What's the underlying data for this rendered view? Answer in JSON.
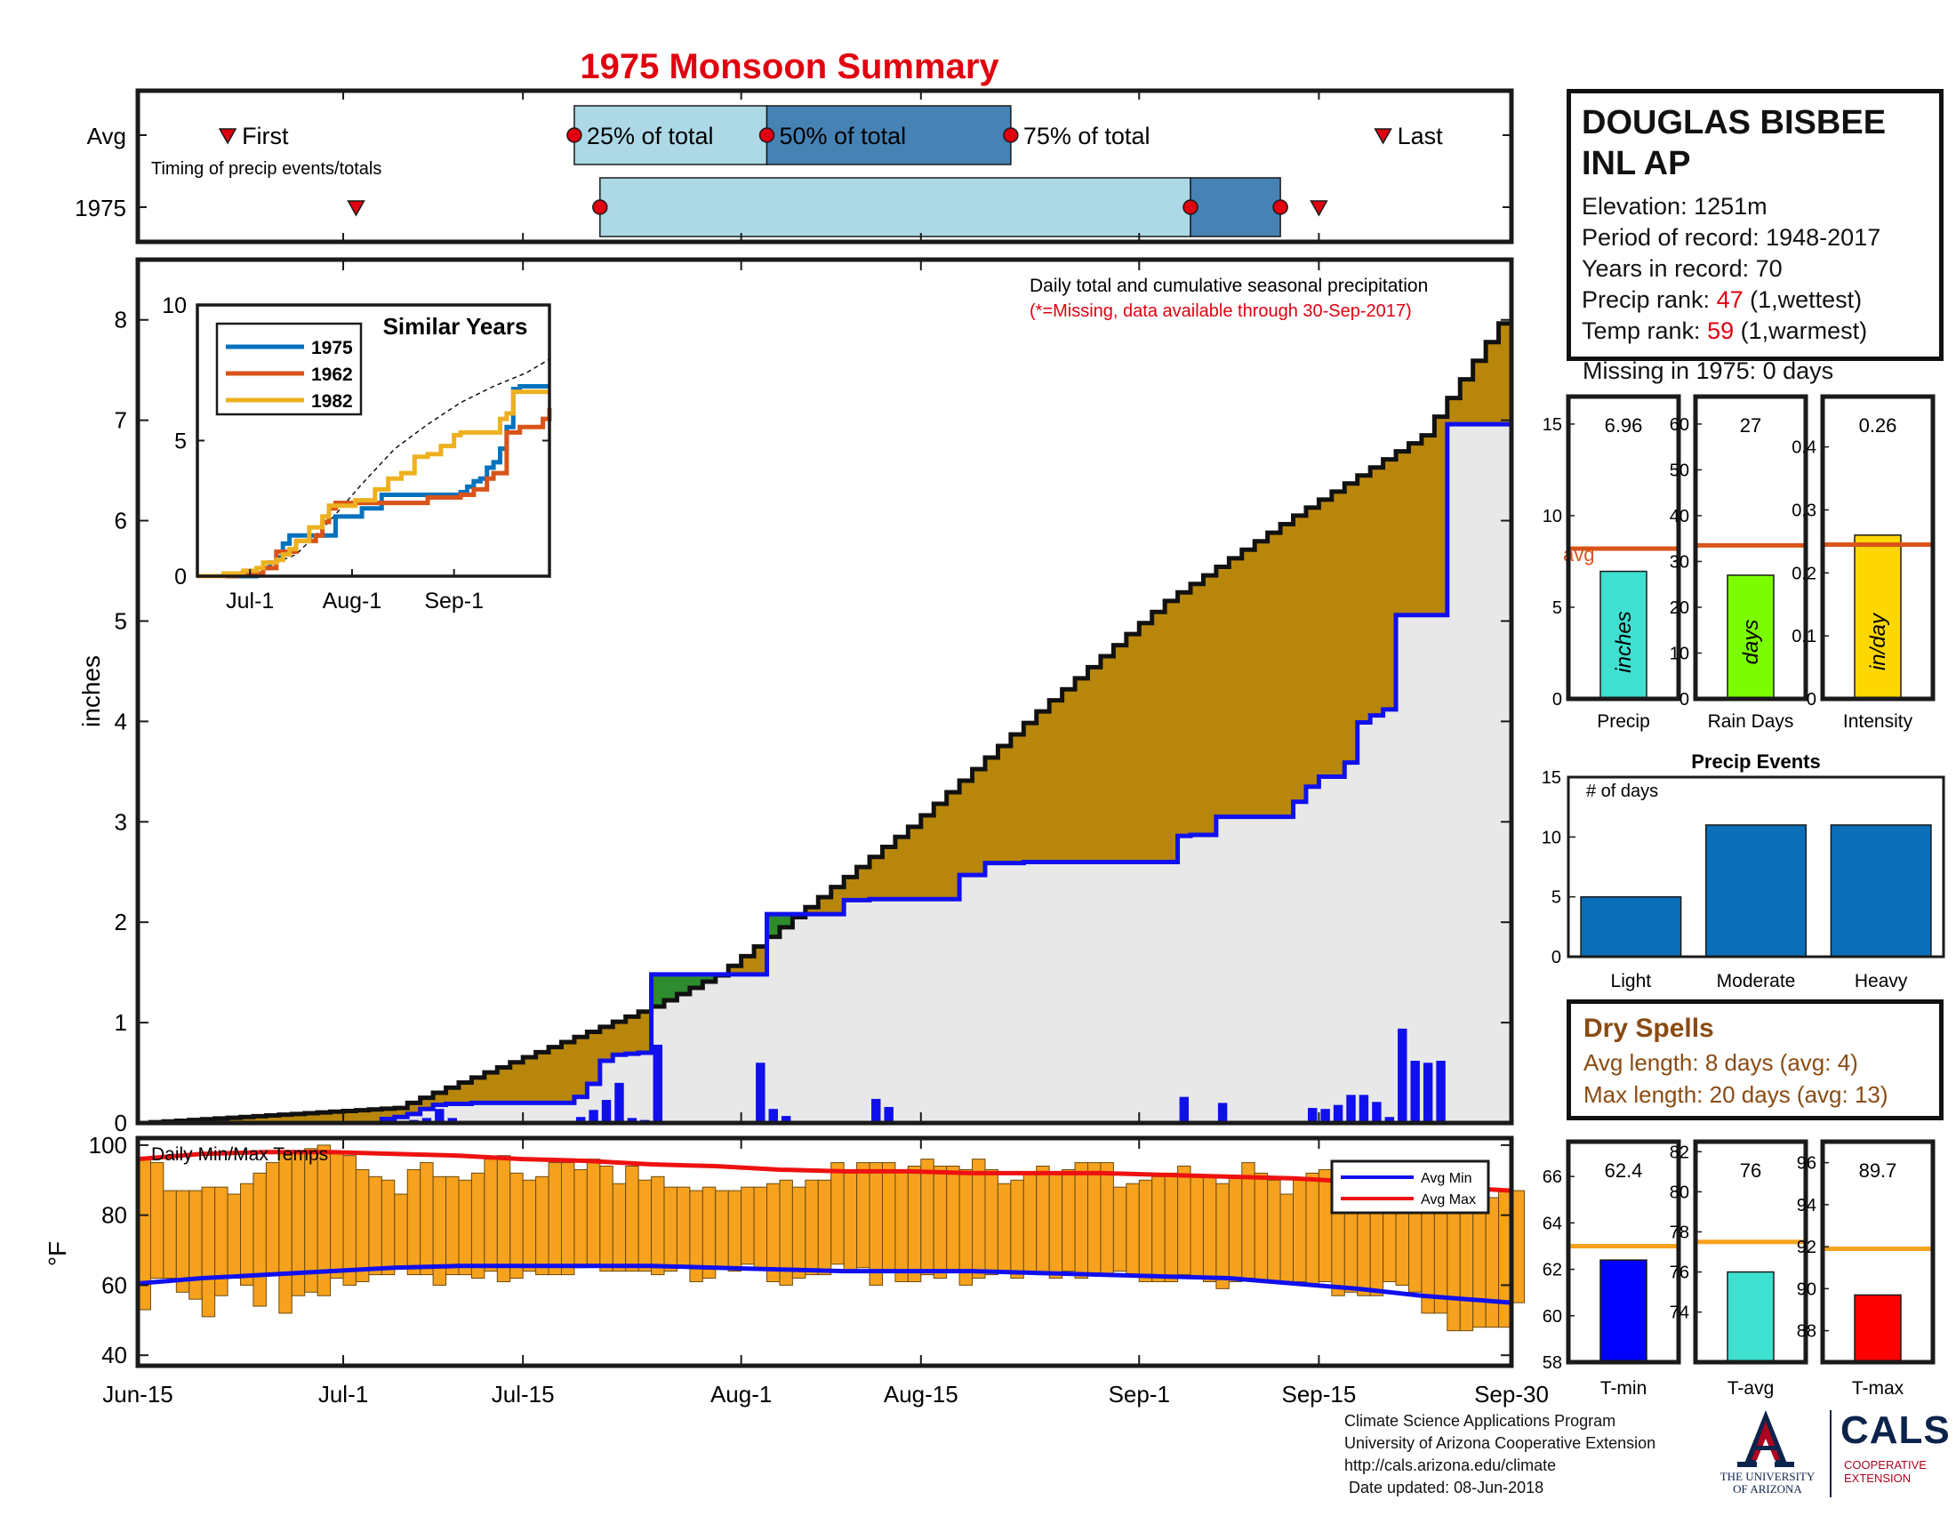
{
  "title": "1975 Monsoon Summary",
  "station": {
    "name_line1": "DOUGLAS BISBEE",
    "name_line2": "INL AP",
    "elevation": "Elevation: 1251m",
    "period": "Period of record: 1948-2017",
    "years": "Years in record: 70",
    "precip_rank_label": "Precip rank: ",
    "precip_rank_value": "47",
    "precip_rank_note": " (1,wettest)",
    "temp_rank_label": "Temp rank: ",
    "temp_rank_value": "59",
    "temp_rank_note": " (1,warmest)",
    "missing": "Missing in 1975: 0 days"
  },
  "dry_spells": {
    "title": "Dry Spells",
    "avg_length": "Avg length: 8 days (avg: 4)",
    "max_length": "Max length: 20 days (avg: 13)"
  },
  "credits": {
    "line1": "Climate Science Applications Program",
    "line2": "University of Arizona Cooperative Extension",
    "line3": "http://cals.arizona.edu/climate",
    "line4": " Date updated: 08-Jun-2018"
  },
  "logos": {
    "ua_line1": "THE UNIVERSITY",
    "ua_line2": "OF ARIZONA",
    "cals": "CALS",
    "cals_sub1": "COOPERATIVE",
    "cals_sub2": "EXTENSION"
  },
  "colors": {
    "observed_fill": "#b8860b",
    "avg_line": "#1010ee",
    "deficit_fill": "#e8e8e8",
    "surplus_fill": "#2e8b2e",
    "daily_bar": "#1010ee",
    "temp_bar": "#f6a21e",
    "avg_max": "#ee1111",
    "avg_min": "#1010ee",
    "accent_red": "#e0000f",
    "timing_light": "#add8e6",
    "timing_dark": "#4682b4",
    "event_bar": "#0a6eb8",
    "ref_line_orange": "#f6a21e",
    "ref_line_red": "#d9541a"
  },
  "chart_data": [
    {
      "id": "timing",
      "type": "bar",
      "subtitle": "Timing of precip events/totals",
      "rows": [
        "Avg",
        "1975"
      ],
      "avg": {
        "first": "2017-06-22",
        "p25": "2017-07-19",
        "p50": "2017-08-03",
        "p75": "2017-08-22",
        "last": "2017-09-20",
        "labels": {
          "first": "First",
          "p25": "25% of total",
          "p50": "50% of total",
          "p75": "75% of total",
          "last": "Last"
        }
      },
      "year": {
        "first": "2017-07-02",
        "p25": "2017-07-21",
        "p50": "2017-09-05",
        "p75": "2017-09-12",
        "last": "2017-09-15"
      }
    },
    {
      "id": "cumulative",
      "type": "area",
      "ylabel": "inches",
      "note": "Daily total and cumulative seasonal precipitation",
      "missing_note": "(*=Missing, data available through 30-Sep-2017)",
      "ylim": [
        0,
        8.6
      ],
      "yticks": [
        0,
        1,
        2,
        3,
        4,
        5,
        6,
        7,
        8
      ],
      "x_start": "2017-06-15",
      "x_end": "2017-09-30",
      "xticks": [
        "Jun-15",
        "Jul-1",
        "Jul-15",
        "Aug-1",
        "Aug-15",
        "Sep-1",
        "Sep-15",
        "Sep-30"
      ],
      "avg_cumulative": {
        "day": [
          0,
          20,
          40,
          45,
          50,
          60,
          70,
          80,
          90,
          100,
          107
        ],
        "inches": [
          0,
          0.15,
          1.16,
          1.47,
          1.95,
          2.95,
          4.1,
          5.2,
          6.05,
          6.85,
          8.15
        ]
      },
      "observed_cumulative": {
        "day": [
          0,
          9,
          18,
          19,
          20,
          21,
          22,
          23,
          24,
          26,
          33,
          34,
          35,
          36,
          37,
          38,
          39,
          40,
          48,
          49,
          55,
          56,
          57,
          59,
          64,
          66,
          67,
          69,
          70,
          78,
          81,
          82,
          83,
          84,
          85,
          86,
          87,
          90,
          91,
          92,
          94,
          95,
          96,
          97,
          98,
          102,
          107
        ],
        "inches": [
          0,
          0,
          0,
          0.04,
          0.06,
          0.09,
          0.14,
          0.18,
          0.19,
          0.2,
          0.2,
          0.26,
          0.39,
          0.62,
          0.68,
          0.69,
          0.7,
          1.48,
          1.48,
          2.08,
          2.22,
          2.22,
          2.23,
          2.23,
          2.47,
          2.59,
          2.59,
          2.6,
          2.6,
          2.6,
          2.86,
          2.87,
          2.87,
          3.05,
          3.05,
          3.05,
          3.05,
          3.2,
          3.35,
          3.45,
          3.59,
          3.99,
          4.06,
          4.12,
          5.06,
          6.96,
          6.96
        ]
      },
      "daily_bars": {
        "day": [
          19,
          20,
          21,
          22,
          23,
          24,
          26,
          34,
          35,
          36,
          37,
          38,
          39,
          40,
          48,
          49,
          50,
          57,
          58,
          69,
          70,
          81,
          84,
          91,
          92,
          93,
          94,
          95,
          96,
          97,
          98,
          99,
          100,
          101,
          102
        ],
        "inches": [
          0.04,
          0.02,
          0.03,
          0.05,
          0.14,
          0.05,
          0.01,
          0.06,
          0.13,
          0.23,
          0.4,
          0.05,
          0.03,
          0.78,
          0.6,
          0.14,
          0.07,
          0.24,
          0.16,
          0.01,
          0.01,
          0.26,
          0.2,
          0.15,
          0.14,
          0.18,
          0.28,
          0.28,
          0.21,
          0.06,
          0.94,
          0.62,
          0.6,
          0.62,
          0.02
        ]
      }
    },
    {
      "id": "similar_years",
      "type": "line",
      "title": "Similar Years",
      "ylim": [
        0,
        10
      ],
      "yticks": [
        0,
        5,
        10
      ],
      "xticks": [
        "Jul-1",
        "Aug-1",
        "Sep-1"
      ],
      "x_start": "2017-06-15",
      "x_end": "2017-09-30",
      "avg_dashed": {
        "day": [
          0,
          10,
          20,
          30,
          40,
          50,
          60,
          70,
          80,
          90,
          100,
          107
        ],
        "inches": [
          0,
          0.1,
          0.3,
          0.8,
          2.0,
          3.4,
          4.7,
          5.6,
          6.4,
          7.0,
          7.5,
          8.0
        ]
      },
      "series": [
        {
          "name": "1975",
          "color": "#0072bd",
          "day": [
            0,
            10,
            14,
            18,
            20,
            22,
            24,
            26,
            28,
            30,
            38,
            42,
            50,
            56,
            62,
            68,
            70,
            80,
            82,
            84,
            86,
            88,
            90,
            92,
            94,
            96,
            98,
            107
          ],
          "inches": [
            0,
            0,
            0,
            0.1,
            0.3,
            0.5,
            0.7,
            1.2,
            1.5,
            1.5,
            1.5,
            2.2,
            2.5,
            3.0,
            3.0,
            3.0,
            3.0,
            3.1,
            3.3,
            3.5,
            3.6,
            4.0,
            4.2,
            4.7,
            5.5,
            6.9,
            7.0,
            7.0
          ]
        },
        {
          "name": "1962",
          "color": "#d95319",
          "day": [
            0,
            12,
            20,
            24,
            30,
            36,
            38,
            40,
            42,
            50,
            60,
            64,
            70,
            76,
            80,
            84,
            88,
            90,
            94,
            98,
            102,
            105,
            107
          ],
          "inches": [
            0,
            0.1,
            0.3,
            0.9,
            1.3,
            1.5,
            2.0,
            2.5,
            2.7,
            2.7,
            2.7,
            2.7,
            2.9,
            2.9,
            3.0,
            3.2,
            3.6,
            3.8,
            5.3,
            5.5,
            5.5,
            5.8,
            6.2
          ]
        },
        {
          "name": "1982",
          "color": "#edb120",
          "day": [
            0,
            8,
            14,
            18,
            20,
            24,
            26,
            28,
            30,
            34,
            38,
            40,
            44,
            48,
            54,
            58,
            62,
            66,
            70,
            74,
            78,
            80,
            84,
            88,
            92,
            94,
            96,
            100,
            107
          ],
          "inches": [
            0,
            0.1,
            0.2,
            0.3,
            0.5,
            0.6,
            0.8,
            1.0,
            1.3,
            1.8,
            2.2,
            2.6,
            2.6,
            2.8,
            3.2,
            3.6,
            3.8,
            4.4,
            4.5,
            4.8,
            5.2,
            5.3,
            5.3,
            5.3,
            5.8,
            6.0,
            6.8,
            6.8,
            6.8
          ]
        }
      ]
    },
    {
      "id": "season_stats",
      "type": "bar",
      "panels": [
        {
          "label": "Precip",
          "value": 6.96,
          "value_text": "6.96",
          "avg": 8.2,
          "ylim": [
            0,
            16.5
          ],
          "yticks": [
            0,
            5,
            10,
            15
          ],
          "unit": "inches",
          "avg_label": "avg",
          "bar_color": "#40e0d0"
        },
        {
          "label": "Rain Days",
          "value": 27,
          "value_text": "27",
          "avg": 33.5,
          "ylim": [
            0,
            66
          ],
          "yticks": [
            0,
            10,
            20,
            30,
            40,
            50,
            60
          ],
          "unit": "days",
          "bar_color": "#7cfc00"
        },
        {
          "label": "Intensity",
          "value": 0.26,
          "value_text": "0.26",
          "avg": 0.245,
          "ylim": [
            0,
            0.48
          ],
          "yticks": [
            0,
            0.1,
            0.2,
            0.3,
            0.4
          ],
          "unit": "in/day",
          "bar_color": "#ffd700"
        }
      ]
    },
    {
      "id": "precip_events",
      "type": "bar",
      "title": "Precip Events",
      "ylabel": "# of days",
      "categories": [
        "Light",
        "Moderate",
        "Heavy"
      ],
      "values": [
        5,
        11,
        11
      ],
      "ylim": [
        0,
        15
      ],
      "yticks": [
        0,
        5,
        10,
        15
      ]
    },
    {
      "id": "temps",
      "type": "bar",
      "title": "Daily Min/Max Temps",
      "ylabel": "°F",
      "ylim": [
        37,
        102
      ],
      "yticks": [
        40,
        60,
        80,
        100
      ],
      "legend": [
        "Avg Min",
        "Avg Max"
      ],
      "legend_position": "top-right",
      "daily_max": [
        96,
        95,
        87,
        87,
        87,
        88,
        88,
        86,
        89,
        92,
        95,
        98,
        98,
        99,
        100,
        98,
        97,
        93,
        91,
        90,
        86,
        93,
        95,
        91,
        91,
        90,
        92,
        96,
        97,
        92,
        90,
        91,
        95,
        95,
        93,
        96,
        94,
        89,
        94,
        90,
        91,
        88,
        88,
        87,
        88,
        87,
        87,
        88,
        88,
        89,
        90,
        88,
        90,
        90,
        95,
        92,
        95,
        95,
        95,
        93,
        94,
        96,
        94,
        94,
        93,
        96,
        93,
        89,
        90,
        92,
        94,
        92,
        93,
        95,
        95,
        95,
        88,
        89,
        90,
        91,
        92,
        94,
        91,
        91,
        89,
        91,
        95,
        92,
        90,
        86,
        90,
        92,
        93,
        86,
        86,
        89,
        90,
        92,
        90,
        91,
        89,
        83,
        83,
        83,
        84,
        85,
        87,
        87
      ],
      "daily_min": [
        53,
        62,
        62,
        58,
        56,
        51,
        57,
        62,
        60,
        54,
        63,
        52,
        57,
        58,
        57,
        62,
        60,
        61,
        63,
        63,
        65,
        63,
        63,
        60,
        63,
        63,
        62,
        64,
        61,
        62,
        64,
        63,
        63,
        63,
        65,
        66,
        64,
        64,
        64,
        64,
        63,
        64,
        65,
        61,
        62,
        65,
        64,
        66,
        65,
        61,
        60,
        62,
        63,
        63,
        66,
        64,
        65,
        60,
        64,
        61,
        61,
        63,
        62,
        64,
        60,
        62,
        63,
        64,
        62,
        64,
        63,
        62,
        64,
        62,
        63,
        63,
        64,
        63,
        61,
        61,
        61,
        63,
        62,
        61,
        59,
        61,
        62,
        61,
        61,
        61,
        61,
        60,
        61,
        57,
        58,
        57,
        57,
        61,
        60,
        58,
        52,
        52,
        47,
        47,
        48,
        48,
        48,
        55
      ],
      "avg_max": {
        "day": [
          0,
          5,
          10,
          15,
          20,
          25,
          30,
          35,
          40,
          45,
          50,
          55,
          60,
          65,
          70,
          75,
          80,
          85,
          90,
          95,
          100,
          107
        ],
        "temp": [
          96,
          97.5,
          98,
          98,
          97.5,
          97,
          96,
          95.5,
          94.5,
          94,
          93,
          92.5,
          92.5,
          92,
          92,
          92,
          91.5,
          91,
          90.5,
          89.5,
          88.5,
          87
        ]
      },
      "avg_min": {
        "day": [
          0,
          5,
          10,
          15,
          20,
          25,
          30,
          35,
          40,
          45,
          50,
          55,
          60,
          65,
          70,
          75,
          80,
          85,
          90,
          95,
          100,
          107
        ],
        "temp": [
          60.5,
          62,
          63,
          64,
          65,
          65.5,
          65.5,
          65.5,
          65.5,
          65,
          64.5,
          64,
          64,
          64,
          63.5,
          63,
          62.5,
          62,
          60.5,
          59,
          57,
          55
        ]
      }
    },
    {
      "id": "temp_stats",
      "type": "bar",
      "panels": [
        {
          "label": "T-min",
          "value": 62.4,
          "value_text": "62.4",
          "avg": 63.0,
          "ylim": [
            58,
            67.5
          ],
          "yticks": [
            58,
            60,
            62,
            64,
            66
          ],
          "bar_color": "#0000ff"
        },
        {
          "label": "T-avg",
          "value": 76,
          "value_text": "76",
          "avg": 77.5,
          "ylim": [
            71.5,
            82.5
          ],
          "yticks": [
            74,
            76,
            78,
            80,
            82
          ],
          "bar_color": "#40e0d0"
        },
        {
          "label": "T-max",
          "value": 89.7,
          "value_text": "89.7",
          "avg": 91.9,
          "ylim": [
            86.5,
            97
          ],
          "yticks": [
            88,
            90,
            92,
            94,
            96
          ],
          "bar_color": "#ff0000"
        }
      ]
    }
  ]
}
